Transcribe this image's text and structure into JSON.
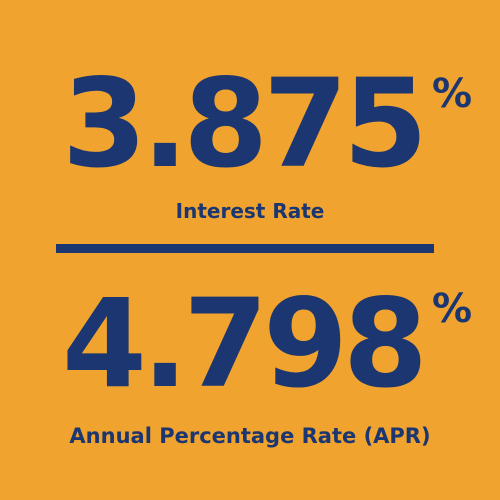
{
  "interest": {
    "value": "3.875",
    "percent_sign": "%",
    "label": "Interest Rate"
  },
  "apr": {
    "value": "4.798",
    "percent_sign": "%",
    "label": "Annual Percentage Rate (APR)"
  },
  "colors": {
    "background": "#F0A42F",
    "text": "#1B3670"
  }
}
